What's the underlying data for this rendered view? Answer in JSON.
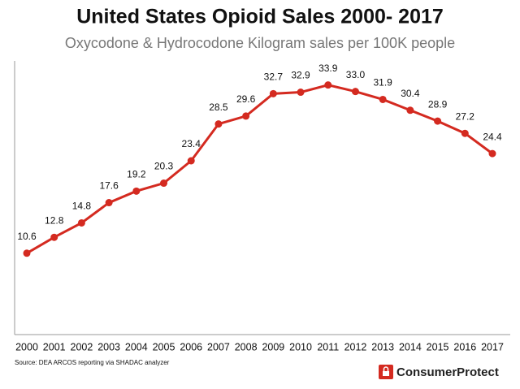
{
  "chart_data": {
    "type": "line",
    "title": "United States Opioid Sales 2000- 2017",
    "subtitle": "Oxycodone & Hydrocodone Kilogram sales per 100K people",
    "source": "Source: DEA ARCOS reporting via SHADAC analyzer",
    "brand": "ConsumerProtect",
    "categories": [
      "2000",
      "2001",
      "2002",
      "2003",
      "2004",
      "2005",
      "2006",
      "2007",
      "2008",
      "2009",
      "2010",
      "2011",
      "2012",
      "2013",
      "2014",
      "2015",
      "2016",
      "2017"
    ],
    "values": [
      10.6,
      12.8,
      14.8,
      17.6,
      19.2,
      20.3,
      23.4,
      28.5,
      29.6,
      32.7,
      32.9,
      33.9,
      33.0,
      31.9,
      30.4,
      28.9,
      27.2,
      24.4
    ],
    "value_labels": [
      "10.6",
      "12.8",
      "14.8",
      "17.6",
      "19.2",
      "20.3",
      "23.4",
      "28.5",
      "29.6",
      "32.7",
      "32.9",
      "33.9",
      "33.0",
      "31.9",
      "30.4",
      "28.9",
      "27.2",
      "24.4"
    ],
    "color": "#d42a20",
    "ylim": [
      0,
      36
    ]
  }
}
